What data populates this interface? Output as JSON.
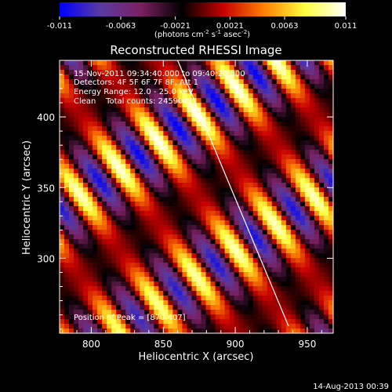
{
  "chart_data": {
    "type": "heatmap",
    "title": "Reconstructed RHESSI Image",
    "colorbar": {
      "ticks": [
        "-0.011",
        "-0.0063",
        "-0.0021",
        "0.0021",
        "0.0063",
        "0.011"
      ],
      "range": [
        -0.011,
        0.011
      ],
      "unit_main": "(photons cm",
      "unit_exp1": "-2",
      "unit_mid": " s",
      "unit_exp2": "-1",
      "unit_end": " asec",
      "unit_exp3": "-2",
      "unit_close": ")",
      "colors": [
        "#0000ff",
        "#5a3aa0",
        "#7a2060",
        "#000000",
        "#c80000",
        "#ff8000",
        "#ffff40",
        "#ffffff"
      ]
    },
    "annotations": {
      "time": "15-Nov-2011 09:34:40.000 to 09:40:20.000",
      "detectors": "Detectors: 4F 5F 6F 7F 8F, Att 1",
      "energy": "Energy Range: 12.0 - 25.0 keV",
      "clean": "Clean    Total counts: 245904",
      "peak": "Position of Peak = [870,407]"
    },
    "xlabel": "Heliocentric X (arcsec)",
    "ylabel": "Heliocentric Y (arcsec)",
    "xlim": [
      778,
      968
    ],
    "ylim": [
      247,
      440
    ],
    "xticks": [
      800,
      850,
      900,
      950
    ],
    "yticks": [
      300,
      350,
      400
    ],
    "xtick_labels": [
      "800",
      "850",
      "900",
      "950"
    ],
    "ytick_labels": [
      "300",
      "350",
      "400"
    ],
    "limb_line": [
      [
        860,
        440
      ],
      [
        937,
        252
      ]
    ],
    "peak": [
      870,
      407
    ]
  },
  "footer": {
    "date": "14-Aug-2013 00:39"
  }
}
